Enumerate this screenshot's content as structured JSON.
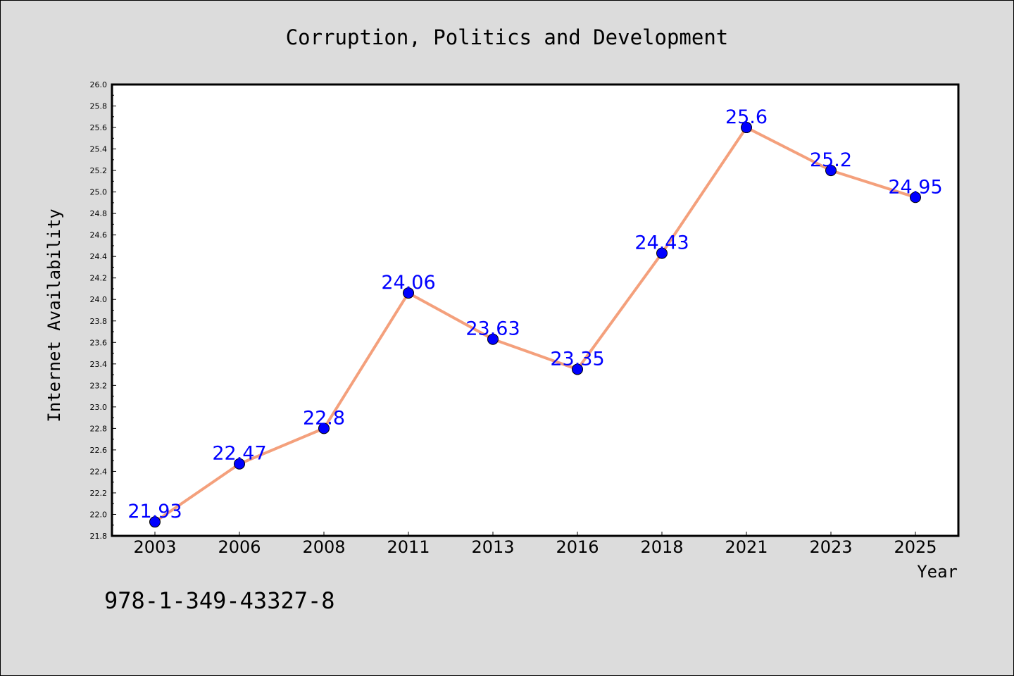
{
  "colors": {
    "background": "#dcdcdc",
    "plot_background": "#ffffff",
    "line": "#f4a07c",
    "marker": "#0000ff",
    "label": "#0000ff"
  },
  "footer": {
    "isbn": "978-1-349-43327-8"
  },
  "chart_data": {
    "type": "line",
    "title": "Corruption, Politics and Development",
    "xlabel": "Year",
    "ylabel": "Internet Availability",
    "categories": [
      "2003",
      "2006",
      "2008",
      "2011",
      "2013",
      "2016",
      "2018",
      "2021",
      "2023",
      "2025"
    ],
    "series": [
      {
        "values": [
          21.93,
          22.47,
          22.8,
          24.06,
          23.63,
          23.35,
          24.43,
          25.6,
          25.2,
          24.95
        ],
        "labels": [
          "21.93",
          "22.47",
          "22.8",
          "24.06",
          "23.63",
          "23.35",
          "24.43",
          "25.6",
          "25.2",
          "24.95"
        ]
      }
    ],
    "ylim": [
      21.8,
      26.0
    ],
    "ytick_step": 0.2,
    "grid": false,
    "legend": "none"
  }
}
